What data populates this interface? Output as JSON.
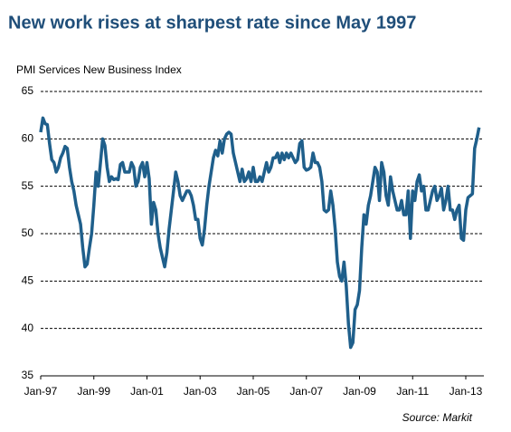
{
  "chart_data": {
    "type": "line",
    "title": "New work rises at sharpest rate since May 1997",
    "y_axis_label": "PMI Services New Business Index",
    "source": "Source: Markit",
    "categories": [
      "Jan-97",
      null,
      null,
      null,
      null,
      null,
      null,
      null,
      null,
      null,
      null,
      null,
      null,
      null,
      null,
      null,
      null,
      null,
      null,
      null,
      null,
      null,
      null,
      null,
      "Jan-99",
      null,
      null,
      null,
      null,
      null,
      null,
      null,
      null,
      null,
      null,
      null,
      null,
      null,
      null,
      null,
      null,
      null,
      null,
      null,
      null,
      null,
      null,
      null,
      "Jan-01",
      null,
      null,
      null,
      null,
      null,
      null,
      null,
      null,
      null,
      null,
      null,
      null,
      null,
      null,
      null,
      null,
      null,
      null,
      null,
      null,
      null,
      null,
      null,
      "Jan-03",
      null,
      null,
      null,
      null,
      null,
      null,
      null,
      null,
      null,
      null,
      null,
      null,
      null,
      null,
      null,
      null,
      null,
      null,
      null,
      null,
      null,
      null,
      null,
      "Jan-05",
      null,
      null,
      null,
      null,
      null,
      null,
      null,
      null,
      null,
      null,
      null,
      null,
      null,
      null,
      null,
      null,
      null,
      null,
      null,
      null,
      null,
      null,
      null,
      "Jan-07",
      null,
      null,
      null,
      null,
      null,
      null,
      null,
      null,
      null,
      null,
      null,
      null,
      null,
      null,
      null,
      null,
      null,
      null,
      null,
      null,
      null,
      null,
      null,
      "Jan-09",
      null,
      null,
      null,
      null,
      null,
      null,
      null,
      null,
      null,
      null,
      null,
      null,
      null,
      null,
      null,
      null,
      null,
      null,
      null,
      null,
      null,
      null,
      null,
      "Jan-11",
      null,
      null,
      null,
      null,
      null,
      null,
      null,
      null,
      null,
      null,
      null,
      null,
      null,
      null,
      null,
      null,
      null,
      null,
      null,
      null,
      null,
      null,
      null,
      "Jan-13",
      null,
      null,
      null,
      null,
      null,
      null
    ],
    "series": [
      {
        "name": "PMI Services New Business Index",
        "color": "#1f5f8b",
        "values": [
          60.7,
          62.2,
          61.6,
          61.5,
          59.5,
          57.8,
          57.5,
          56.5,
          57,
          58,
          58.5,
          59.2,
          59,
          57,
          55.5,
          54.5,
          53,
          52,
          51,
          48.5,
          46.5,
          46.8,
          48.5,
          50,
          53,
          56.5,
          55,
          57.5,
          60,
          59.3,
          57,
          55.5,
          56,
          55.7,
          55.8,
          55.7,
          57.3,
          57.5,
          56.5,
          56.5,
          56.5,
          57.5,
          57,
          55,
          55.5,
          57,
          57.5,
          56,
          57.5,
          55.8,
          51,
          53.3,
          52.5,
          50,
          48.5,
          47.5,
          46.5,
          48,
          50.5,
          52.5,
          54.5,
          56.5,
          55.5,
          54,
          53.5,
          54,
          54.5,
          54.5,
          54,
          53,
          51.5,
          51.5,
          49.5,
          48.8,
          50.5,
          53,
          55,
          56.5,
          58,
          58.8,
          58.2,
          59.8,
          58.5,
          60,
          60.5,
          60.7,
          60.5,
          58.5,
          57.5,
          56.5,
          55.5,
          56.8,
          55.5,
          55.8,
          56.5,
          55.5,
          57,
          55.5,
          55.5,
          56,
          55.5,
          56.5,
          57.5,
          56.5,
          57,
          58,
          58,
          58.5,
          57.5,
          58.5,
          57.8,
          58.5,
          58,
          58.5,
          58,
          57.5,
          57.8,
          59.5,
          59.8,
          57,
          56.7,
          56.8,
          57,
          58.5,
          57.5,
          57.5,
          57,
          55.5,
          52.5,
          52.3,
          52.5,
          54.5,
          53,
          50.5,
          47,
          45.5,
          45,
          47,
          44.5,
          40.5,
          38,
          38.5,
          42,
          42.5,
          44,
          48.5,
          52,
          51,
          53,
          54,
          55.5,
          57,
          56.5,
          53.5,
          57.5,
          56.5,
          54,
          53,
          56,
          54.5,
          53.5,
          52.5,
          52.5,
          53.5,
          52,
          52,
          54.5,
          49.5,
          54.5,
          53.5,
          55.5,
          56.2,
          54.5,
          55,
          52.5,
          52.5,
          53.5,
          54.5,
          55,
          53.5,
          54,
          54.8,
          52.5,
          53.5,
          55,
          52.5,
          52.5,
          51.5,
          52.5,
          53,
          49.5,
          49.3,
          52.5,
          53.8,
          54,
          54.2,
          59,
          60,
          61.2
        ]
      }
    ],
    "ylim": [
      35,
      65
    ],
    "yticks": [
      35,
      40,
      45,
      50,
      55,
      60,
      65
    ],
    "grid": true
  }
}
